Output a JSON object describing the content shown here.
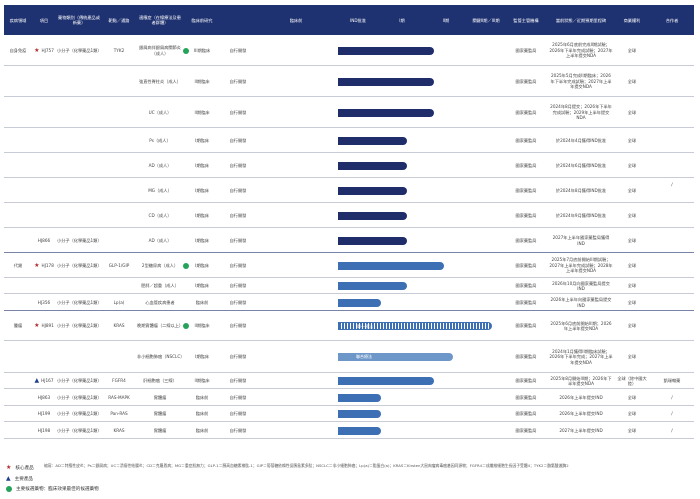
{
  "headers": [
    "疾病領域",
    "項目",
    "藥物類別（傳統產品或新藥）",
    "靶點／通路",
    "適應症（在線療法及患者群體）",
    "臨床前研究",
    "IND",
    "臨床前",
    "IND批准",
    "I期",
    "II期",
    "關鍵II期／III期",
    "監管主管機構",
    "當前狀態／近期預期里程碑",
    "商業權利",
    "合作者"
  ],
  "rows": [
    {
      "area": "自身免疫",
      "project": "HJ757",
      "mark": "star",
      "cls": "小分子（化學藥品1類）",
      "target": "TYK2",
      "ind": "銀屑病伴銀屑病關節炎（成人）",
      "dot": true,
      "stage": "III期臨床",
      "pre": "自行開發",
      "bar": "dark",
      "w": 1,
      "auth": "國家藥監局",
      "status": "2025年6月底前完成II期試驗；2026年下半年完成試驗；2027年上半年提交NDA",
      "rights": "全球"
    },
    {
      "ind": "強直性脊柱炎（成人）",
      "stage": "II期臨床",
      "pre": "自行開發",
      "bar": "dark",
      "w": 1,
      "auth": "國家藥監局",
      "status": "2025年5月完成II期臨床；2026年下半年完成試驗；2027年上半年提交NDA",
      "rights": "全球"
    },
    {
      "ind": "UC（成人）",
      "stage": "II期臨床",
      "pre": "自行開發",
      "bar": "dark",
      "w": 1,
      "auth": "國家藥監局",
      "status": "2024年8月提交；2026年下半年完成試驗；2029年上半年提交NDA",
      "rights": "全球"
    },
    {
      "ind": "Ps（成人）",
      "stage": "I期臨床",
      "pre": "自行開發",
      "bar": "dark",
      "w": 0.72,
      "auth": "國家藥監局",
      "status": "於2024年4月獲得IND批准",
      "rights": "全球"
    },
    {
      "ind": "AD（成人）",
      "stage": "I期臨床",
      "pre": "自行開發",
      "bar": "dark",
      "w": 0.72,
      "auth": "國家藥監局",
      "status": "於2024年6月獲得IND批准",
      "rights": "全球"
    },
    {
      "ind": "MG（成人）",
      "stage": "I期臨床",
      "pre": "自行開發",
      "bar": "dark",
      "w": 0.72,
      "auth": "國家藥監局",
      "status": "於2024年8月獲得IND批准",
      "rights": "全球"
    },
    {
      "ind": "CD（成人）",
      "stage": "I期臨床",
      "pre": "自行開發",
      "bar": "dark",
      "w": 0.72,
      "auth": "國家藥監局",
      "status": "於2024年9月獲得IND批准",
      "rights": "全球"
    },
    {
      "project": "HJ866",
      "cls": "小分子（化學藥品1類）",
      "ind": "AD（成人）",
      "stage": "I期臨床",
      "pre": "自行開發",
      "bar": "dark",
      "w": 0.72,
      "auth": "國家藥監局",
      "status": "2027年上半年國家藥監局獲得IND",
      "rights": "全球"
    },
    {
      "area": "代謝",
      "project": "HJ178",
      "mark": "star",
      "cls": "小分子（化學藥品1類）",
      "target": "GLP-1/GIP",
      "ind": "2型糖尿病（成人）",
      "dot": true,
      "stage": "I期臨床",
      "pre": "自行開發",
      "bar": "med",
      "w": 1.1,
      "auth": "國家藥監局",
      "status": "2025年7月底前開始III期試驗；2027年上半年完成試驗；2028年上半年提交NDA",
      "rights": "全球"
    },
    {
      "ind": "肥胖／超重（成人）",
      "stage": "I期臨床",
      "pre": "自行開發",
      "bar": "med",
      "w": 0.72,
      "auth": "國家藥監局",
      "status": "2026年10月向國家藥監局提交IND",
      "rights": "全球"
    },
    {
      "project": "HJ356",
      "cls": "小分子（化學藥品1類）",
      "target": "Lp(a)",
      "ind": "心血管疾病患者",
      "stage": "臨床前",
      "pre": "自行開發",
      "bar": "med",
      "w": 0.45,
      "auth": "國家藥監局",
      "status": "2026年上半年向國家藥監局提交IND",
      "rights": "全球"
    },
    {
      "area": "腫瘤",
      "project": "HJ891",
      "mark": "star",
      "cls": "小分子（化學藥品1類）",
      "target": "KRAS",
      "ind": "晚期實體瘤（二線以上）",
      "dot": true,
      "stage": "II期臨床",
      "pre": "自行開發",
      "bar": "hatch",
      "w": 1.6,
      "barlabel": "單一療法",
      "auth": "國家藥監局",
      "status": "2025年6月底前開始III期；2026年上半年提交NDA",
      "rights": "全球"
    },
    {
      "ind": "非小細胞肺癌（NSCLC）",
      "stage": "I期臨床",
      "pre": "自行開發",
      "bar": "light",
      "w": 1.2,
      "barlabel": "聯合療法",
      "auth": "國家藥監局",
      "status": "2024年1月獲得II期臨床試驗；2026年下半年完成；2027年上半年提交NDA",
      "rights": "全球"
    },
    {
      "project": "HJ167",
      "mark": "tri",
      "cls": "小分子（化學藥品1類）",
      "target": "FGFR4",
      "ind": "肝細胞癌（三線）",
      "stage": "II期臨床",
      "pre": "自行開發",
      "bar": "med",
      "w": 1.0,
      "auth": "國家藥監局",
      "status": "2025年8月開始III期；2026年下半年提交NDA",
      "rights": "全球（除中國大陸）",
      "partner": "凱瑞翰藥"
    },
    {
      "project": "HJ863",
      "cls": "小分子（化學藥品1類）",
      "target": "RAS-MAPK",
      "ind": "實體瘤",
      "stage": "臨床前",
      "pre": "自行開發",
      "bar": "med",
      "w": 0.45,
      "auth": "國家藥監局",
      "status": "2026年上半年提交IND",
      "rights": "全球",
      "partner": "/"
    },
    {
      "project": "HJ199",
      "cls": "小分子（化學藥品1類）",
      "target": "Pan-RAS",
      "ind": "實體瘤",
      "stage": "臨床前",
      "pre": "自行開發",
      "bar": "med",
      "w": 0.45,
      "auth": "國家藥監局",
      "status": "2026年上半年提交IND",
      "rights": "全球",
      "partner": "/"
    },
    {
      "project": "HJ198",
      "cls": "小分子（化學藥品1類）",
      "target": "KRAS",
      "ind": "實體瘤",
      "stage": "臨床前",
      "pre": "自行開發",
      "bar": "med",
      "w": 0.45,
      "auth": "國家藥監局",
      "status": "2027年上半年提交IND",
      "rights": "全球",
      "partner": "/"
    }
  ],
  "partner_main": "/",
  "legend": {
    "core": "核心產品",
    "key": "主要產品",
    "green": "主要候選藥物：臨床效果最佳的候選藥物",
    "note": "縮寫：AD＝特應性皮炎；Ps＝銀屑病；UC＝潰瘍性結腸炎；CD＝克羅恩病；MG＝重症肌無力；GLP-1＝胰高血糖素樣肽-1；GIP＝葡萄糖依賴性促胰島素多肽；NSCLC＝非小細胞肺癌；Lp(a)＝脂蛋白(a)；KRAS＝Kirsten大鼠肉瘤病毒癌基因同源物；FGFR4＝成纖維細胞生長因子受體4；TYK2＝酪氨酸激酶2"
  },
  "colors": {
    "header": "#1e3170",
    "bar_dark": "#1f2d6b",
    "bar_med": "#3d6fb5",
    "star": "#b42a2a",
    "green": "#26a35a"
  }
}
